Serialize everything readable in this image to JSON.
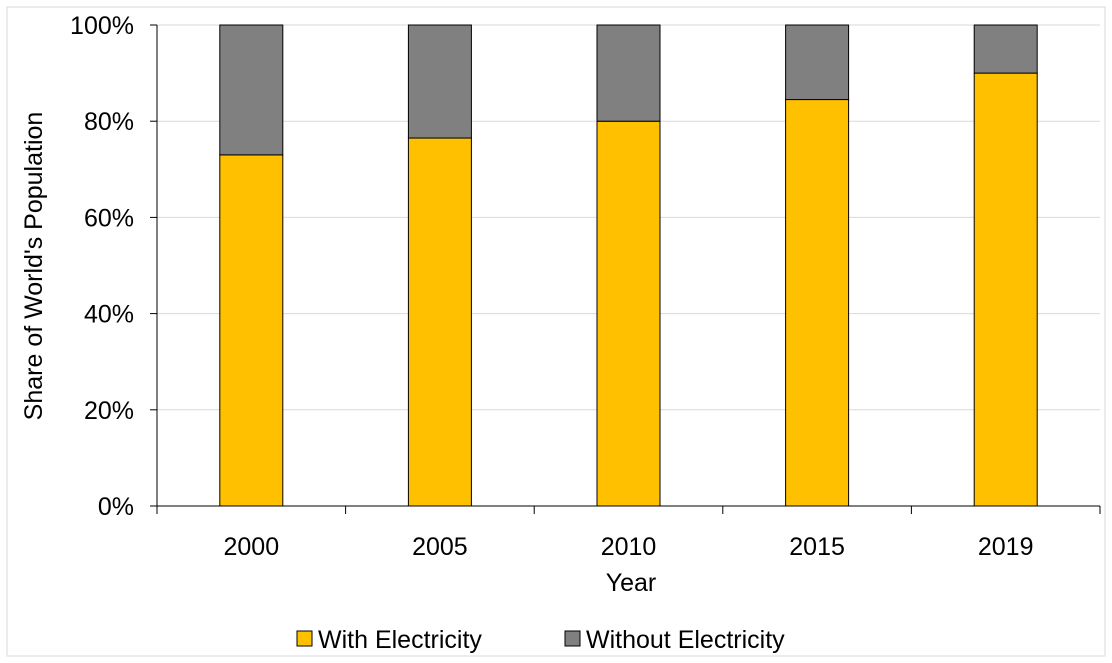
{
  "chart_data": {
    "type": "bar",
    "stacked": true,
    "categories": [
      "2000",
      "2005",
      "2010",
      "2015",
      "2019"
    ],
    "series": [
      {
        "name": "With Electricity",
        "values": [
          73,
          76.5,
          80,
          84.5,
          90
        ],
        "color": "#FFC000"
      },
      {
        "name": "Without Electricity",
        "values": [
          27,
          23.5,
          20,
          15.5,
          10
        ],
        "color": "#808080"
      }
    ],
    "xlabel": "Year",
    "ylabel": "Share of World's Population",
    "ylim": [
      0,
      100
    ],
    "yticks": [
      "0%",
      "20%",
      "40%",
      "60%",
      "80%",
      "100%"
    ],
    "grid": true,
    "legend": "bottom"
  }
}
